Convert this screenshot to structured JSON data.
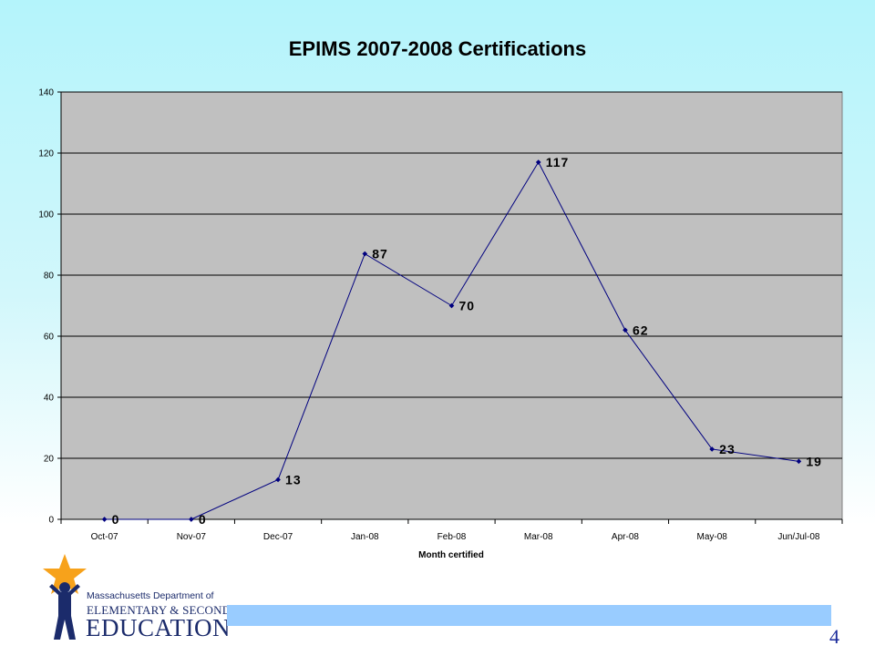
{
  "chart_data": {
    "type": "line",
    "title": "EPIMS 2007-2008 Certifications",
    "xlabel": "Month certified",
    "ylabel": "",
    "categories": [
      "Oct-07",
      "Nov-07",
      "Dec-07",
      "Jan-08",
      "Feb-08",
      "Mar-08",
      "Apr-08",
      "May-08",
      "Jun/Jul-08"
    ],
    "series": [
      {
        "values": [
          0,
          0,
          13,
          87,
          70,
          117,
          62,
          23,
          19
        ]
      }
    ],
    "data_labels": [
      "0",
      "0",
      "13",
      "87",
      "70",
      "117",
      "62",
      "23",
      "19"
    ],
    "ylim": [
      0,
      140
    ],
    "yticks": [
      0,
      20,
      40,
      60,
      80,
      100,
      120,
      140
    ],
    "grid": true,
    "legend": "none",
    "colors": {
      "line": "#00007f",
      "plot_bg": "#c0c0c0",
      "grid": "#000000"
    }
  },
  "logo": {
    "line1": "Massachusetts Department of",
    "line2": "ELEMENTARY & SECONDARY",
    "line3": "EDUCATION"
  },
  "page_number": "4",
  "icons": {
    "logo_figure": "star-figure-icon"
  }
}
